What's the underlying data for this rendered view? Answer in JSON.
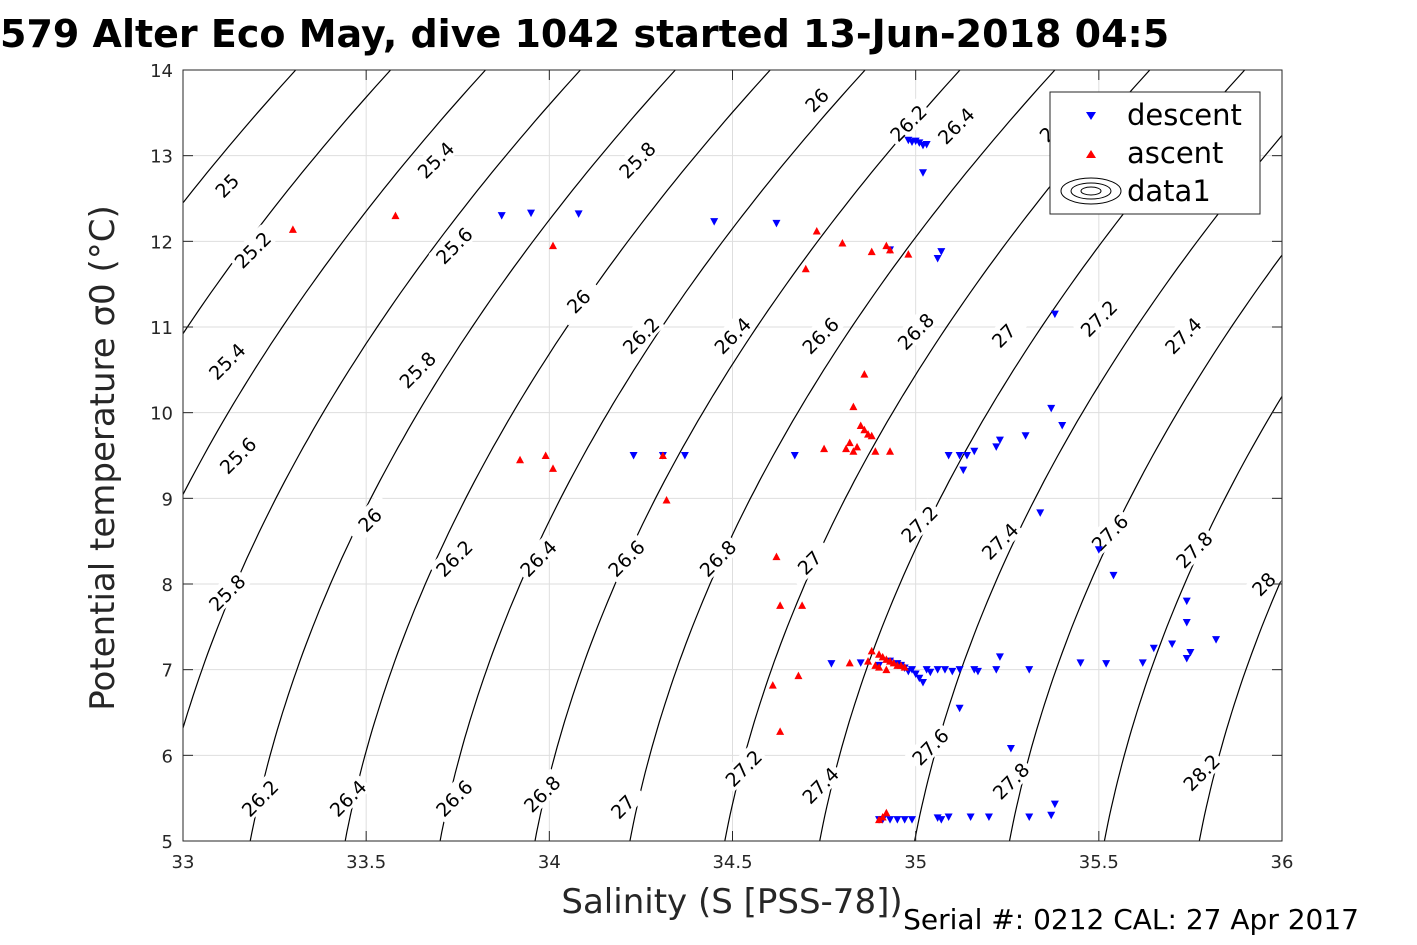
{
  "chart_data": {
    "type": "scatter",
    "title": "579 Alter Eco May, dive 1042 started 13-Jun-2018 04:5",
    "xlabel": "Salinity (S [PSS-78])",
    "ylabel": "Potential temperature σ0 (°C)",
    "footer": "Serial #: 0212  CAL: 27 Apr 2017",
    "xlim": [
      33,
      36
    ],
    "ylim": [
      5,
      14
    ],
    "x_ticks": [
      "33",
      "33.5",
      "34",
      "34.5",
      "35",
      "35.5",
      "36"
    ],
    "y_ticks": [
      "5",
      "6",
      "7",
      "8",
      "9",
      "10",
      "11",
      "12",
      "13",
      "14"
    ],
    "grid": true,
    "legend_position": "top-right",
    "legend": [
      "descent",
      "ascent",
      "data1"
    ],
    "contours": {
      "levels": [
        25,
        25.2,
        25.4,
        25.6,
        25.8,
        26,
        26.2,
        26.4,
        26.6,
        26.8,
        27,
        27.2,
        27.4,
        27.6,
        27.8,
        28,
        28.2
      ],
      "labels": [
        {
          "text": "25",
          "s": 33.12,
          "t": 12.65
        },
        {
          "text": "25.2",
          "s": 33.19,
          "t": 11.9
        },
        {
          "text": "25.4",
          "s": 33.12,
          "t": 10.6
        },
        {
          "text": "25.6",
          "s": 33.15,
          "t": 9.5
        },
        {
          "text": "25.8",
          "s": 33.12,
          "t": 7.9
        },
        {
          "text": "26.2",
          "s": 33.21,
          "t": 5.5
        },
        {
          "text": "25.4",
          "s": 33.69,
          "t": 12.95
        },
        {
          "text": "25.6",
          "s": 33.74,
          "t": 11.95
        },
        {
          "text": "25.8",
          "s": 33.64,
          "t": 10.5
        },
        {
          "text": "26",
          "s": 33.51,
          "t": 8.75
        },
        {
          "text": "26.2",
          "s": 33.74,
          "t": 8.3
        },
        {
          "text": "26.4",
          "s": 33.45,
          "t": 5.5
        },
        {
          "text": "26.6",
          "s": 33.74,
          "t": 5.5
        },
        {
          "text": "25.8",
          "s": 34.24,
          "t": 12.95
        },
        {
          "text": "26",
          "s": 34.08,
          "t": 11.3
        },
        {
          "text": "26.2",
          "s": 34.25,
          "t": 10.9
        },
        {
          "text": "26.4",
          "s": 34.5,
          "t": 10.9
        },
        {
          "text": "26.4",
          "s": 33.97,
          "t": 8.3
        },
        {
          "text": "26.6",
          "s": 34.21,
          "t": 8.3
        },
        {
          "text": "26.8",
          "s": 33.98,
          "t": 5.55
        },
        {
          "text": "27",
          "s": 34.2,
          "t": 5.4
        },
        {
          "text": "26.8",
          "s": 34.46,
          "t": 8.3
        },
        {
          "text": "27",
          "s": 34.71,
          "t": 8.25
        },
        {
          "text": "27.2",
          "s": 34.53,
          "t": 5.85
        },
        {
          "text": "27.4",
          "s": 34.74,
          "t": 5.65
        },
        {
          "text": "26",
          "s": 34.73,
          "t": 13.65
        },
        {
          "text": "26.2",
          "s": 34.98,
          "t": 13.38
        },
        {
          "text": "26.4",
          "s": 35.11,
          "t": 13.35
        },
        {
          "text": "26",
          "s": 35.37,
          "t": 13.3
        },
        {
          "text": "26.6",
          "s": 34.74,
          "t": 10.9
        },
        {
          "text": "26.8",
          "s": 35.0,
          "t": 10.95
        },
        {
          "text": "27",
          "s": 35.24,
          "t": 10.9
        },
        {
          "text": "27.2",
          "s": 35.5,
          "t": 11.1
        },
        {
          "text": "27.4",
          "s": 35.73,
          "t": 10.9
        },
        {
          "text": "27.2",
          "s": 35.01,
          "t": 8.7
        },
        {
          "text": "27.4",
          "s": 35.23,
          "t": 8.5
        },
        {
          "text": "27.6",
          "s": 35.53,
          "t": 8.6
        },
        {
          "text": "27.8",
          "s": 35.76,
          "t": 8.4
        },
        {
          "text": "28",
          "s": 35.95,
          "t": 8.0
        },
        {
          "text": "27.6",
          "s": 35.04,
          "t": 6.1
        },
        {
          "text": "27.8",
          "s": 35.26,
          "t": 5.7
        },
        {
          "text": "28.2",
          "s": 35.78,
          "t": 5.8
        }
      ]
    },
    "series": [
      {
        "name": "descent",
        "color": "#0000ff",
        "marker": "triangle-down",
        "points": [
          [
            33.87,
            12.3
          ],
          [
            33.95,
            12.33
          ],
          [
            34.08,
            12.32
          ],
          [
            34.45,
            12.23
          ],
          [
            34.62,
            12.21
          ],
          [
            34.93,
            11.9
          ],
          [
            35.07,
            11.88
          ],
          [
            35.06,
            11.8
          ],
          [
            35.02,
            12.8
          ],
          [
            34.98,
            13.18
          ],
          [
            34.99,
            13.16
          ],
          [
            35.0,
            13.17
          ],
          [
            35.01,
            13.15
          ],
          [
            35.02,
            13.12
          ],
          [
            35.03,
            13.13
          ],
          [
            35.38,
            11.15
          ],
          [
            35.37,
            10.05
          ],
          [
            35.4,
            9.85
          ],
          [
            35.3,
            9.73
          ],
          [
            35.23,
            9.68
          ],
          [
            35.22,
            9.6
          ],
          [
            35.16,
            9.55
          ],
          [
            35.14,
            9.5
          ],
          [
            35.12,
            9.5
          ],
          [
            35.09,
            9.5
          ],
          [
            35.13,
            9.33
          ],
          [
            35.34,
            8.83
          ],
          [
            35.5,
            8.4
          ],
          [
            35.54,
            8.1
          ],
          [
            35.74,
            7.8
          ],
          [
            35.74,
            7.55
          ],
          [
            35.82,
            7.35
          ],
          [
            35.7,
            7.3
          ],
          [
            35.75,
            7.2
          ],
          [
            35.74,
            7.13
          ],
          [
            35.65,
            7.25
          ],
          [
            35.62,
            7.08
          ],
          [
            35.52,
            7.07
          ],
          [
            35.45,
            7.08
          ],
          [
            35.31,
            7.0
          ],
          [
            35.23,
            7.15
          ],
          [
            35.22,
            7.0
          ],
          [
            35.17,
            6.98
          ],
          [
            35.16,
            7.0
          ],
          [
            35.12,
            7.0
          ],
          [
            35.1,
            6.98
          ],
          [
            35.08,
            7.0
          ],
          [
            35.06,
            7.0
          ],
          [
            35.04,
            6.97
          ],
          [
            35.03,
            7.0
          ],
          [
            35.02,
            6.85
          ],
          [
            35.01,
            6.9
          ],
          [
            35.0,
            6.95
          ],
          [
            34.99,
            7.0
          ],
          [
            34.98,
            6.98
          ],
          [
            34.97,
            7.02
          ],
          [
            34.96,
            7.05
          ],
          [
            34.95,
            7.07
          ],
          [
            34.93,
            7.1
          ],
          [
            34.9,
            7.05
          ],
          [
            34.85,
            7.08
          ],
          [
            34.77,
            7.07
          ],
          [
            34.67,
            9.5
          ],
          [
            34.23,
            9.5
          ],
          [
            34.31,
            9.5
          ],
          [
            34.37,
            9.5
          ],
          [
            35.12,
            6.55
          ],
          [
            35.26,
            6.08
          ],
          [
            34.9,
            5.25
          ],
          [
            34.91,
            5.25
          ],
          [
            34.93,
            5.25
          ],
          [
            34.95,
            5.25
          ],
          [
            34.97,
            5.25
          ],
          [
            34.99,
            5.25
          ],
          [
            35.06,
            5.27
          ],
          [
            35.07,
            5.25
          ],
          [
            35.09,
            5.28
          ],
          [
            35.15,
            5.28
          ],
          [
            35.2,
            5.28
          ],
          [
            35.31,
            5.28
          ],
          [
            35.37,
            5.3
          ],
          [
            35.38,
            5.43
          ]
        ]
      },
      {
        "name": "ascent",
        "color": "#ff0000",
        "marker": "triangle-up",
        "points": [
          [
            33.3,
            12.14
          ],
          [
            33.58,
            12.3
          ],
          [
            34.01,
            11.95
          ],
          [
            34.73,
            12.12
          ],
          [
            34.8,
            11.98
          ],
          [
            34.88,
            11.88
          ],
          [
            34.92,
            11.95
          ],
          [
            34.93,
            11.9
          ],
          [
            34.98,
            11.85
          ],
          [
            34.7,
            11.68
          ],
          [
            34.86,
            10.45
          ],
          [
            34.83,
            10.07
          ],
          [
            34.85,
            9.85
          ],
          [
            34.86,
            9.8
          ],
          [
            34.87,
            9.75
          ],
          [
            34.88,
            9.73
          ],
          [
            34.82,
            9.65
          ],
          [
            34.84,
            9.6
          ],
          [
            34.81,
            9.58
          ],
          [
            34.75,
            9.58
          ],
          [
            34.83,
            9.55
          ],
          [
            34.89,
            9.55
          ],
          [
            34.93,
            9.55
          ],
          [
            33.92,
            9.45
          ],
          [
            33.99,
            9.5
          ],
          [
            34.01,
            9.35
          ],
          [
            34.31,
            9.5
          ],
          [
            34.32,
            8.98
          ],
          [
            34.62,
            8.32
          ],
          [
            34.69,
            7.75
          ],
          [
            34.63,
            7.75
          ],
          [
            34.88,
            7.22
          ],
          [
            34.9,
            7.18
          ],
          [
            34.91,
            7.15
          ],
          [
            34.92,
            7.12
          ],
          [
            34.93,
            7.1
          ],
          [
            34.94,
            7.08
          ],
          [
            34.95,
            7.05
          ],
          [
            34.96,
            7.05
          ],
          [
            34.97,
            7.03
          ],
          [
            34.87,
            7.1
          ],
          [
            34.82,
            7.08
          ],
          [
            34.89,
            7.05
          ],
          [
            34.9,
            7.03
          ],
          [
            34.92,
            7.0
          ],
          [
            34.68,
            6.93
          ],
          [
            34.61,
            6.82
          ],
          [
            34.63,
            6.28
          ],
          [
            34.9,
            5.25
          ],
          [
            34.91,
            5.28
          ],
          [
            34.92,
            5.33
          ]
        ]
      }
    ]
  }
}
